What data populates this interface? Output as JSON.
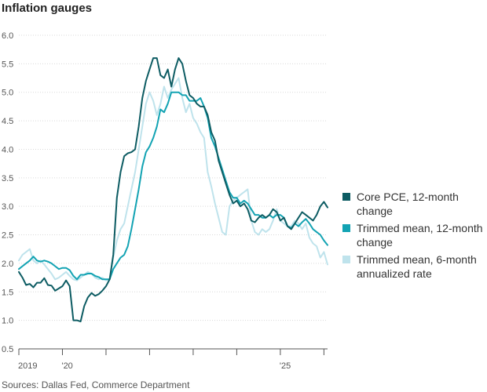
{
  "title": "Inflation gauges",
  "source": "Sources: Dallas Fed, Commerce Department",
  "chart_data": {
    "type": "line",
    "ylim": [
      0.5,
      6.0
    ],
    "yticks": [
      0.5,
      1.0,
      1.5,
      2.0,
      2.5,
      3.0,
      3.5,
      4.0,
      4.5,
      5.0,
      5.5,
      6.0
    ],
    "ytick_labels": [
      "0.5",
      "1.0",
      "1.5",
      "2.0",
      "2.5",
      "3.0",
      "3.5",
      "4.0",
      "4.5",
      "5.0",
      "5.5",
      "6.0"
    ],
    "xlim": [
      "2019-01",
      "2026-02"
    ],
    "xtick_positions": [
      "2019-01",
      "2020-01",
      "2021-01",
      "2022-01",
      "2023-01",
      "2024-01",
      "2025-01",
      "2026-01"
    ],
    "xtick_labels": [
      "2019",
      "'20",
      "",
      "",
      "",
      "",
      "'25",
      ""
    ],
    "grid": true,
    "legend_position": "right",
    "series": [
      {
        "name": "Core PCE, 12-month change",
        "color": "#0d5c63",
        "points": [
          [
            "2019-01",
            1.85
          ],
          [
            "2019-02",
            1.75
          ],
          [
            "2019-03",
            1.62
          ],
          [
            "2019-04",
            1.64
          ],
          [
            "2019-05",
            1.58
          ],
          [
            "2019-06",
            1.66
          ],
          [
            "2019-07",
            1.66
          ],
          [
            "2019-08",
            1.74
          ],
          [
            "2019-09",
            1.62
          ],
          [
            "2019-10",
            1.61
          ],
          [
            "2019-11",
            1.52
          ],
          [
            "2019-12",
            1.56
          ],
          [
            "2020-01",
            1.6
          ],
          [
            "2020-02",
            1.7
          ],
          [
            "2020-03",
            1.6
          ],
          [
            "2020-04",
            1.0
          ],
          [
            "2020-05",
            1.0
          ],
          [
            "2020-06",
            0.98
          ],
          [
            "2020-07",
            1.25
          ],
          [
            "2020-08",
            1.4
          ],
          [
            "2020-09",
            1.48
          ],
          [
            "2020-10",
            1.43
          ],
          [
            "2020-11",
            1.46
          ],
          [
            "2020-12",
            1.52
          ],
          [
            "2021-01",
            1.6
          ],
          [
            "2021-02",
            1.72
          ],
          [
            "2021-03",
            2.15
          ],
          [
            "2021-04",
            3.15
          ],
          [
            "2021-05",
            3.6
          ],
          [
            "2021-06",
            3.88
          ],
          [
            "2021-07",
            3.93
          ],
          [
            "2021-08",
            3.95
          ],
          [
            "2021-09",
            4.0
          ],
          [
            "2021-10",
            4.4
          ],
          [
            "2021-11",
            4.9
          ],
          [
            "2021-12",
            5.2
          ],
          [
            "2022-01",
            5.4
          ],
          [
            "2022-02",
            5.6
          ],
          [
            "2022-03",
            5.6
          ],
          [
            "2022-04",
            5.3
          ],
          [
            "2022-05",
            5.25
          ],
          [
            "2022-06",
            5.4
          ],
          [
            "2022-07",
            5.1
          ],
          [
            "2022-08",
            5.4
          ],
          [
            "2022-09",
            5.6
          ],
          [
            "2022-10",
            5.5
          ],
          [
            "2022-11",
            5.2
          ],
          [
            "2022-12",
            4.95
          ],
          [
            "2023-01",
            4.9
          ],
          [
            "2023-02",
            4.8
          ],
          [
            "2023-03",
            4.75
          ],
          [
            "2023-04",
            4.75
          ],
          [
            "2023-05",
            4.6
          ],
          [
            "2023-06",
            4.3
          ],
          [
            "2023-07",
            4.15
          ],
          [
            "2023-08",
            3.8
          ],
          [
            "2023-09",
            3.6
          ],
          [
            "2023-10",
            3.4
          ],
          [
            "2023-11",
            3.2
          ],
          [
            "2023-12",
            3.05
          ],
          [
            "2024-01",
            3.1
          ],
          [
            "2024-02",
            3.0
          ],
          [
            "2024-03",
            3.05
          ],
          [
            "2024-04",
            2.95
          ],
          [
            "2024-05",
            2.75
          ],
          [
            "2024-06",
            2.72
          ],
          [
            "2024-07",
            2.8
          ],
          [
            "2024-08",
            2.85
          ],
          [
            "2024-09",
            2.8
          ],
          [
            "2024-10",
            2.85
          ],
          [
            "2024-11",
            2.95
          ],
          [
            "2024-12",
            2.9
          ],
          [
            "2025-01",
            2.75
          ],
          [
            "2025-02",
            2.8
          ],
          [
            "2025-03",
            2.65
          ],
          [
            "2025-04",
            2.6
          ],
          [
            "2025-05",
            2.7
          ],
          [
            "2025-06",
            2.8
          ],
          [
            "2025-07",
            2.9
          ],
          [
            "2025-08",
            2.85
          ],
          [
            "2025-09",
            2.8
          ],
          [
            "2025-10",
            2.75
          ],
          [
            "2025-11",
            2.85
          ],
          [
            "2025-12",
            3.0
          ],
          [
            "2026-01",
            3.08
          ],
          [
            "2026-02",
            2.98
          ]
        ]
      },
      {
        "name": "Trimmed mean, 12-month change",
        "color": "#13a3b3",
        "points": [
          [
            "2019-01",
            1.9
          ],
          [
            "2019-02",
            1.95
          ],
          [
            "2019-03",
            2.0
          ],
          [
            "2019-04",
            2.05
          ],
          [
            "2019-05",
            2.12
          ],
          [
            "2019-06",
            2.05
          ],
          [
            "2019-07",
            2.03
          ],
          [
            "2019-08",
            2.05
          ],
          [
            "2019-09",
            2.03
          ],
          [
            "2019-10",
            2.0
          ],
          [
            "2019-11",
            1.95
          ],
          [
            "2019-12",
            1.9
          ],
          [
            "2020-01",
            1.92
          ],
          [
            "2020-02",
            1.92
          ],
          [
            "2020-03",
            1.88
          ],
          [
            "2020-04",
            1.78
          ],
          [
            "2020-05",
            1.72
          ],
          [
            "2020-06",
            1.8
          ],
          [
            "2020-07",
            1.8
          ],
          [
            "2020-08",
            1.82
          ],
          [
            "2020-09",
            1.82
          ],
          [
            "2020-10",
            1.78
          ],
          [
            "2020-11",
            1.76
          ],
          [
            "2020-12",
            1.72
          ],
          [
            "2021-01",
            1.72
          ],
          [
            "2021-02",
            1.72
          ],
          [
            "2021-03",
            1.9
          ],
          [
            "2021-04",
            2.0
          ],
          [
            "2021-05",
            2.1
          ],
          [
            "2021-06",
            2.15
          ],
          [
            "2021-07",
            2.3
          ],
          [
            "2021-08",
            2.6
          ],
          [
            "2021-09",
            2.95
          ],
          [
            "2021-10",
            3.3
          ],
          [
            "2021-11",
            3.7
          ],
          [
            "2021-12",
            3.95
          ],
          [
            "2022-01",
            4.05
          ],
          [
            "2022-02",
            4.2
          ],
          [
            "2022-03",
            4.4
          ],
          [
            "2022-04",
            4.7
          ],
          [
            "2022-05",
            4.65
          ],
          [
            "2022-06",
            4.8
          ],
          [
            "2022-07",
            5.0
          ],
          [
            "2022-08",
            5.0
          ],
          [
            "2022-09",
            5.0
          ],
          [
            "2022-10",
            4.95
          ],
          [
            "2022-11",
            4.95
          ],
          [
            "2022-12",
            4.85
          ],
          [
            "2023-01",
            4.85
          ],
          [
            "2023-02",
            4.85
          ],
          [
            "2023-03",
            4.9
          ],
          [
            "2023-04",
            4.75
          ],
          [
            "2023-05",
            4.55
          ],
          [
            "2023-06",
            4.2
          ],
          [
            "2023-07",
            4.05
          ],
          [
            "2023-08",
            3.85
          ],
          [
            "2023-09",
            3.65
          ],
          [
            "2023-10",
            3.45
          ],
          [
            "2023-11",
            3.25
          ],
          [
            "2023-12",
            3.15
          ],
          [
            "2024-01",
            3.15
          ],
          [
            "2024-02",
            3.05
          ],
          [
            "2024-03",
            3.1
          ],
          [
            "2024-04",
            3.05
          ],
          [
            "2024-05",
            2.95
          ],
          [
            "2024-06",
            2.85
          ],
          [
            "2024-07",
            2.85
          ],
          [
            "2024-08",
            2.8
          ],
          [
            "2024-09",
            2.8
          ],
          [
            "2024-10",
            2.85
          ],
          [
            "2024-11",
            2.8
          ],
          [
            "2024-12",
            2.85
          ],
          [
            "2025-01",
            2.85
          ],
          [
            "2025-02",
            2.8
          ],
          [
            "2025-03",
            2.65
          ],
          [
            "2025-04",
            2.62
          ],
          [
            "2025-05",
            2.7
          ],
          [
            "2025-06",
            2.65
          ],
          [
            "2025-07",
            2.72
          ],
          [
            "2025-08",
            2.78
          ],
          [
            "2025-09",
            2.7
          ],
          [
            "2025-10",
            2.6
          ],
          [
            "2025-11",
            2.55
          ],
          [
            "2025-12",
            2.5
          ],
          [
            "2026-01",
            2.4
          ],
          [
            "2026-02",
            2.32
          ]
        ]
      },
      {
        "name": "Trimmed mean, 6-month annualized rate",
        "color": "#bfe3ec",
        "points": [
          [
            "2019-01",
            2.05
          ],
          [
            "2019-02",
            2.15
          ],
          [
            "2019-03",
            2.2
          ],
          [
            "2019-04",
            2.25
          ],
          [
            "2019-05",
            2.05
          ],
          [
            "2019-06",
            2.0
          ],
          [
            "2019-07",
            2.05
          ],
          [
            "2019-08",
            1.98
          ],
          [
            "2019-09",
            1.9
          ],
          [
            "2019-10",
            1.82
          ],
          [
            "2019-11",
            1.72
          ],
          [
            "2019-12",
            1.75
          ],
          [
            "2020-01",
            1.8
          ],
          [
            "2020-02",
            1.85
          ],
          [
            "2020-03",
            1.78
          ],
          [
            "2020-04",
            1.72
          ],
          [
            "2020-05",
            1.7
          ],
          [
            "2020-06",
            1.75
          ],
          [
            "2020-07",
            1.8
          ],
          [
            "2020-08",
            1.85
          ],
          [
            "2020-09",
            1.82
          ],
          [
            "2020-10",
            1.75
          ],
          [
            "2020-11",
            1.72
          ],
          [
            "2020-12",
            1.75
          ],
          [
            "2021-01",
            1.7
          ],
          [
            "2021-02",
            1.72
          ],
          [
            "2021-03",
            2.1
          ],
          [
            "2021-04",
            2.4
          ],
          [
            "2021-05",
            2.6
          ],
          [
            "2021-06",
            2.7
          ],
          [
            "2021-07",
            3.0
          ],
          [
            "2021-08",
            3.3
          ],
          [
            "2021-09",
            3.6
          ],
          [
            "2021-10",
            4.0
          ],
          [
            "2021-11",
            4.4
          ],
          [
            "2021-12",
            4.8
          ],
          [
            "2022-01",
            5.0
          ],
          [
            "2022-02",
            4.85
          ],
          [
            "2022-03",
            4.6
          ],
          [
            "2022-04",
            4.8
          ],
          [
            "2022-05",
            5.1
          ],
          [
            "2022-06",
            4.9
          ],
          [
            "2022-07",
            5.05
          ],
          [
            "2022-08",
            5.15
          ],
          [
            "2022-09",
            5.25
          ],
          [
            "2022-10",
            4.9
          ],
          [
            "2022-11",
            4.65
          ],
          [
            "2022-12",
            4.8
          ],
          [
            "2023-01",
            4.55
          ],
          [
            "2023-02",
            4.45
          ],
          [
            "2023-03",
            4.3
          ],
          [
            "2023-04",
            4.2
          ],
          [
            "2023-05",
            3.6
          ],
          [
            "2023-06",
            3.35
          ],
          [
            "2023-07",
            3.05
          ],
          [
            "2023-08",
            2.8
          ],
          [
            "2023-09",
            2.55
          ],
          [
            "2023-10",
            2.5
          ],
          [
            "2023-11",
            3.0
          ],
          [
            "2023-12",
            3.1
          ],
          [
            "2024-01",
            3.15
          ],
          [
            "2024-02",
            3.2
          ],
          [
            "2024-03",
            3.25
          ],
          [
            "2024-04",
            3.3
          ],
          [
            "2024-05",
            2.75
          ],
          [
            "2024-06",
            2.55
          ],
          [
            "2024-07",
            2.5
          ],
          [
            "2024-08",
            2.6
          ],
          [
            "2024-09",
            2.55
          ],
          [
            "2024-10",
            2.6
          ],
          [
            "2024-11",
            2.75
          ],
          [
            "2024-12",
            2.95
          ],
          [
            "2025-01",
            2.75
          ],
          [
            "2025-02",
            2.7
          ],
          [
            "2025-03",
            2.65
          ],
          [
            "2025-04",
            2.65
          ],
          [
            "2025-05",
            2.75
          ],
          [
            "2025-06",
            2.7
          ],
          [
            "2025-07",
            2.6
          ],
          [
            "2025-08",
            2.7
          ],
          [
            "2025-09",
            2.45
          ],
          [
            "2025-10",
            2.35
          ],
          [
            "2025-11",
            2.3
          ],
          [
            "2025-12",
            2.1
          ],
          [
            "2026-01",
            2.2
          ],
          [
            "2026-02",
            1.98
          ]
        ]
      }
    ]
  }
}
